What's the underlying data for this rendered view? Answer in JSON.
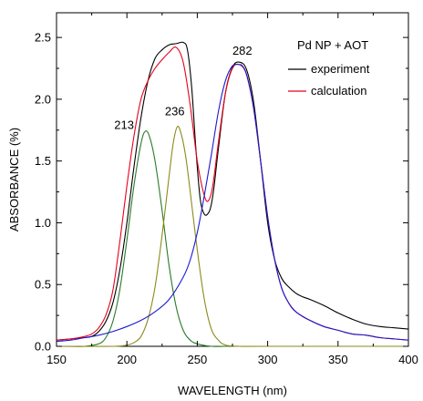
{
  "chart_data": {
    "type": "line",
    "title": "",
    "xlabel": "WAVELENGTH (nm)",
    "ylabel": "ABSORBANCE (%)",
    "xlim": [
      150,
      400
    ],
    "ylim": [
      0,
      2.7
    ],
    "x_ticks": [
      150,
      200,
      250,
      300,
      350,
      400
    ],
    "y_ticks": [
      0.0,
      0.5,
      1.0,
      1.5,
      2.0,
      2.5
    ],
    "x_tick_labels": [
      "150",
      "200",
      "250",
      "300",
      "350",
      "400"
    ],
    "y_tick_labels": [
      "0.0",
      "0.5",
      "1.0",
      "1.5",
      "2.0",
      "2.5"
    ],
    "grid": false,
    "legend": {
      "title": "Pd NP + AOT",
      "placement": "top-right",
      "entries": [
        {
          "name": "experiment",
          "color": "#000000"
        },
        {
          "name": "calculation",
          "color": "#e8001c"
        }
      ]
    },
    "annotations": [
      {
        "text": "213",
        "x": 198,
        "y": 1.76
      },
      {
        "text": "236",
        "x": 234,
        "y": 1.87
      },
      {
        "text": "282",
        "x": 282,
        "y": 2.36
      }
    ],
    "series": [
      {
        "name": "experiment",
        "color": "#000000",
        "x": [
          150,
          160,
          170,
          175,
          180,
          185,
          190,
          195,
          200,
          205,
          210,
          215,
          220,
          225,
          230,
          235,
          240,
          243,
          246,
          249,
          252,
          255,
          258,
          260,
          262,
          265,
          270,
          275,
          280,
          285,
          290,
          295,
          300,
          305,
          310,
          315,
          320,
          325,
          330,
          340,
          350,
          360,
          370,
          380,
          390,
          400
        ],
        "y": [
          0.05,
          0.06,
          0.07,
          0.08,
          0.12,
          0.2,
          0.35,
          0.62,
          1.0,
          1.45,
          1.85,
          2.15,
          2.33,
          2.4,
          2.44,
          2.45,
          2.46,
          2.4,
          2.1,
          1.6,
          1.2,
          1.07,
          1.08,
          1.15,
          1.3,
          1.6,
          2.05,
          2.26,
          2.3,
          2.24,
          1.98,
          1.5,
          1.0,
          0.7,
          0.55,
          0.48,
          0.43,
          0.4,
          0.38,
          0.33,
          0.27,
          0.22,
          0.18,
          0.16,
          0.15,
          0.14
        ]
      },
      {
        "name": "calculation",
        "color": "#e8001c",
        "x": [
          150,
          160,
          170,
          175,
          180,
          185,
          190,
          195,
          200,
          205,
          210,
          215,
          220,
          225,
          230,
          235,
          240,
          245,
          250,
          255,
          258,
          261,
          265,
          270,
          275,
          280,
          285,
          290,
          295,
          300,
          305,
          310,
          315,
          320,
          325,
          330,
          340,
          350,
          360,
          370,
          380,
          390,
          400
        ],
        "y": [
          0.05,
          0.06,
          0.08,
          0.1,
          0.15,
          0.25,
          0.45,
          0.85,
          1.3,
          1.7,
          2.0,
          2.15,
          2.25,
          2.32,
          2.38,
          2.42,
          2.3,
          1.95,
          1.5,
          1.22,
          1.18,
          1.3,
          1.65,
          2.05,
          2.25,
          2.28,
          2.2,
          1.93,
          1.5,
          1.05,
          0.7,
          0.47,
          0.35,
          0.28,
          0.24,
          0.21,
          0.16,
          0.13,
          0.1,
          0.09,
          0.07,
          0.06,
          0.05
        ]
      },
      {
        "name": "",
        "color": "#2a7a2a",
        "x": [
          150,
          160,
          170,
          180,
          185,
          190,
          195,
          200,
          205,
          210,
          213,
          216,
          220,
          225,
          230,
          235,
          240,
          245,
          250,
          260,
          270,
          300,
          400
        ],
        "y": [
          0.0,
          0.0,
          0.0,
          0.02,
          0.07,
          0.2,
          0.46,
          0.86,
          1.3,
          1.64,
          1.74,
          1.7,
          1.5,
          1.1,
          0.65,
          0.32,
          0.13,
          0.05,
          0.02,
          0.0,
          0.0,
          0.0,
          0.0
        ]
      },
      {
        "name": "",
        "color": "#8c8a1a",
        "x": [
          150,
          190,
          200,
          205,
          210,
          215,
          220,
          225,
          230,
          233,
          236,
          239,
          242,
          245,
          250,
          255,
          260,
          265,
          270,
          280,
          300,
          400
        ],
        "y": [
          0.0,
          0.0,
          0.01,
          0.03,
          0.08,
          0.22,
          0.48,
          0.9,
          1.38,
          1.65,
          1.78,
          1.7,
          1.52,
          1.25,
          0.78,
          0.38,
          0.14,
          0.05,
          0.01,
          0.0,
          0.0,
          0.0
        ]
      },
      {
        "name": "",
        "color": "#1a1ad2",
        "x": [
          150,
          160,
          170,
          180,
          190,
          200,
          210,
          220,
          230,
          240,
          245,
          250,
          255,
          260,
          265,
          270,
          275,
          280,
          282,
          285,
          290,
          295,
          300,
          305,
          310,
          315,
          320,
          330,
          340,
          350,
          360,
          370,
          380,
          390,
          400
        ],
        "y": [
          0.04,
          0.05,
          0.07,
          0.09,
          0.12,
          0.16,
          0.21,
          0.28,
          0.38,
          0.56,
          0.7,
          0.92,
          1.22,
          1.55,
          1.9,
          2.15,
          2.27,
          2.28,
          2.27,
          2.2,
          1.93,
          1.5,
          1.05,
          0.7,
          0.47,
          0.35,
          0.28,
          0.21,
          0.16,
          0.13,
          0.1,
          0.09,
          0.07,
          0.06,
          0.05
        ]
      }
    ]
  }
}
